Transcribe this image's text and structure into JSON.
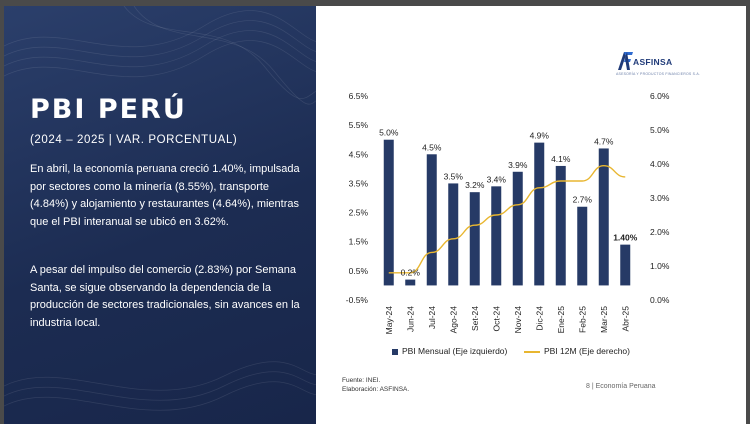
{
  "left": {
    "title": "PBI PERÚ",
    "subtitle": "(2024 – 2025 | VAR. PORCENTUAL)",
    "paragraph1": "En abril, la economía peruana creció 1.40%, impulsada por sectores como la minería (8.55%), transporte (4.84%) y alojamiento y restaurantes (4.64%), mientras que el PBI interanual se ubicó en 3.62%.",
    "paragraph2": "A pesar del impulso del comercio (2.83%) por Semana Santa, se sigue observando la dependencia de la producción de sectores tradicionales, sin avances en la industria local."
  },
  "logo": {
    "name": "ASFINSA",
    "tagline": "ASESORÍA Y PRODUCTOS FINANCIEROS S.A."
  },
  "footer": {
    "source": "Fuente: INEI.",
    "elaboration": "Elaboración: ASFINSA.",
    "page": "8 | Economía Peruana"
  },
  "colors": {
    "bar": "#263a66",
    "line": "#e8b630",
    "panel": "#1f2f57"
  },
  "chart_data": {
    "type": "bar",
    "categories": [
      "May-24",
      "Jun-24",
      "Jul-24",
      "Ago-24",
      "Set-24",
      "Oct-24",
      "Nov-24",
      "Dic-24",
      "Ene-25",
      "Feb-25",
      "Mar-25",
      "Abr-25"
    ],
    "series": [
      {
        "name": "PBI Mensual (Eje izquierdo)",
        "type": "bar",
        "axis": "left",
        "values": [
          5.0,
          0.2,
          4.5,
          3.5,
          3.2,
          3.4,
          3.9,
          4.9,
          4.1,
          2.7,
          4.7,
          1.4
        ],
        "labels": [
          "5.0%",
          "0.2%",
          "4.5%",
          "3.5%",
          "3.2%",
          "3.4%",
          "3.9%",
          "4.9%",
          "4.1%",
          "2.7%",
          "4.7%",
          "1.40%"
        ]
      },
      {
        "name": "PBI 12M (Eje derecho)",
        "type": "line",
        "axis": "right",
        "values": [
          0.8,
          0.8,
          1.4,
          1.8,
          2.2,
          2.5,
          2.8,
          3.3,
          3.5,
          3.5,
          3.95,
          3.62
        ]
      }
    ],
    "y_left": {
      "lim": [
        -0.5,
        6.5
      ],
      "ticks": [
        -0.5,
        0.5,
        1.5,
        2.5,
        3.5,
        4.5,
        5.5,
        6.5
      ],
      "tick_labels": [
        "-0.5%",
        "0.5%",
        "1.5%",
        "2.5%",
        "3.5%",
        "4.5%",
        "5.5%",
        "6.5%"
      ]
    },
    "y_right": {
      "lim": [
        0,
        6
      ],
      "ticks": [
        0,
        1,
        2,
        3,
        4,
        5,
        6
      ],
      "tick_labels": [
        "0.0%",
        "1.0%",
        "2.0%",
        "3.0%",
        "4.0%",
        "5.0%",
        "6.0%"
      ]
    },
    "grid": false,
    "legend": "bottom"
  }
}
